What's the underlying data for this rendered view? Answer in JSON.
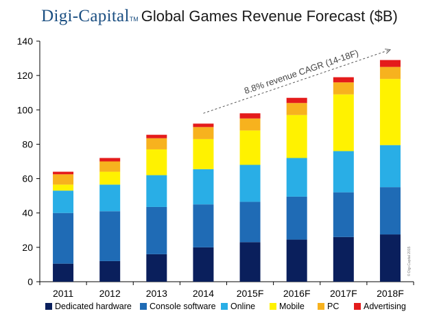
{
  "header": {
    "brand": "Digi-Capital",
    "trademark": "TM",
    "title": "Global Games Revenue Forecast ($B)"
  },
  "colors": {
    "dedicated_hardware": "#0a1f5c",
    "console_software": "#1f6bb5",
    "online": "#29aee6",
    "mobile": "#fff200",
    "pc": "#f7b21e",
    "advertising": "#e41b1b",
    "axis": "#000000",
    "annotation": "#555555"
  },
  "chart_data": {
    "type": "bar",
    "stacked": true,
    "title": "Global Games Revenue Forecast ($B)",
    "xlabel": "",
    "ylabel": "",
    "ylim": [
      0,
      140
    ],
    "yticks": [
      0,
      20,
      40,
      60,
      80,
      100,
      120,
      140
    ],
    "grid": false,
    "legend_position": "bottom",
    "categories": [
      "2011",
      "2012",
      "2013",
      "2014",
      "2015F",
      "2016F",
      "2017F",
      "2018F"
    ],
    "series": [
      {
        "name": "Dedicated hardware",
        "color_key": "dedicated_hardware",
        "values": [
          10.5,
          12,
          16,
          20,
          23,
          24.5,
          26,
          27.5
        ]
      },
      {
        "name": "Console software",
        "color_key": "console_software",
        "values": [
          29.5,
          29,
          27.5,
          25,
          23.5,
          25,
          26,
          27.5
        ]
      },
      {
        "name": "Online",
        "color_key": "online",
        "values": [
          13,
          15.5,
          18.5,
          20.5,
          21.5,
          22.5,
          24,
          24.5
        ]
      },
      {
        "name": "Mobile",
        "color_key": "mobile",
        "values": [
          3.5,
          7.5,
          15,
          17.5,
          20,
          25,
          33,
          38.5
        ]
      },
      {
        "name": "PC",
        "color_key": "pc",
        "values": [
          6,
          6,
          6.5,
          7,
          7,
          7,
          7,
          7
        ]
      },
      {
        "name": "Advertising",
        "color_key": "advertising",
        "values": [
          1.5,
          2,
          2,
          2,
          3,
          3,
          3,
          4
        ]
      }
    ],
    "annotation": {
      "text": "8.8% revenue CAGR (14-18F)",
      "from": {
        "category": "2014",
        "value": 98
      },
      "to": {
        "category": "2018F",
        "value": 135
      }
    },
    "watermark": "© Digi-Capital 2015"
  }
}
